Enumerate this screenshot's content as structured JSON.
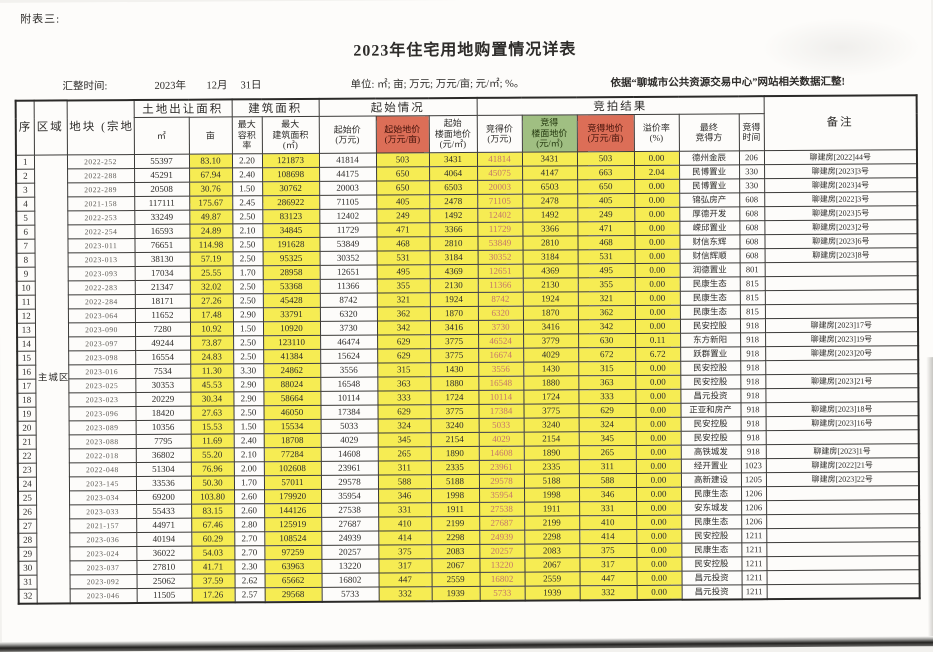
{
  "doc": {
    "corner_label": "附表三:",
    "title": "2023年住宅用地购置情况详表",
    "compile_time_label": "汇整时间:",
    "compile_year": "2023年",
    "compile_month": "12月",
    "compile_day": "31日",
    "units_note": "单位: ㎡; 亩; 万元; 万元/亩; 元/㎡; %。",
    "source_note": "依据“聊城市公共资源交易中心”网站相关数据汇整!"
  },
  "colors": {
    "highlight_yellow": "#f6ec53",
    "header_red": "#dc6e57",
    "header_green": "#a0bf82",
    "win_price_text": "#c4766b"
  },
  "table": {
    "headers": {
      "no": "序\n号",
      "region": "区域",
      "plot": "地块\n(宗地编号)",
      "land_area_group": "土地出让面积",
      "build_group": "建筑面积",
      "start_group": "起始情况",
      "auction_group": "竞拍结果",
      "remark": "备注",
      "sub": {
        "m2": "㎡",
        "mu": "亩",
        "far": "最大\n容积\n率",
        "build_area": "最大\n建筑面积\n(㎡)",
        "start_price": "起始价\n(万元)",
        "start_mu": "起始地价\n(万元/亩)",
        "start_floor": "起始\n楼面地价\n(元/㎡)",
        "win_price": "竞得价\n(万元)",
        "win_floor": "竞得\n楼面地价\n(元/㎡)",
        "win_mu": "竞得地价\n(万元/亩)",
        "premium": "溢价率\n(%)",
        "winner": "最终\n竞得方",
        "win_time": "竞得\n时间"
      }
    },
    "region_label": "主城区",
    "row_fields": [
      "plot_no",
      "area_m2",
      "area_mu",
      "max_far",
      "max_build_area_m2",
      "start_price_wy",
      "start_price_wy_per_mu",
      "start_floor_price_yuan_m2",
      "win_price_wy",
      "win_floor_price_yuan_m2",
      "win_price_wy_per_mu",
      "premium_rate_pct",
      "winner",
      "win_time",
      "remark"
    ],
    "rows": [
      [
        "2022-252",
        "55397",
        "83.10",
        "2.20",
        "121873",
        "41814",
        "503",
        "3431",
        "41814",
        "3431",
        "503",
        "0.00",
        "德州金辰",
        "206",
        "聊建房[2022]44号"
      ],
      [
        "2022-288",
        "45291",
        "67.94",
        "2.40",
        "108698",
        "44175",
        "650",
        "4064",
        "45075",
        "4147",
        "663",
        "2.04",
        "民博置业",
        "330",
        "聊建房[2023]3号"
      ],
      [
        "2022-289",
        "20508",
        "30.76",
        "1.50",
        "30762",
        "20003",
        "650",
        "6503",
        "20003",
        "6503",
        "650",
        "0.00",
        "民博置业",
        "330",
        "聊建房[2023]4号"
      ],
      [
        "2021-158",
        "117111",
        "175.67",
        "2.45",
        "286922",
        "71105",
        "405",
        "2478",
        "71105",
        "2478",
        "405",
        "0.00",
        "锦弘房产",
        "608",
        "聊建房[2022]3号"
      ],
      [
        "2022-253",
        "33249",
        "49.87",
        "2.50",
        "83123",
        "12402",
        "249",
        "1492",
        "12402",
        "1492",
        "249",
        "0.00",
        "厚德开发",
        "608",
        "聊建房[2023]5号"
      ],
      [
        "2022-254",
        "16593",
        "24.89",
        "2.10",
        "34845",
        "11729",
        "471",
        "3366",
        "11729",
        "3366",
        "471",
        "0.00",
        "嵘邱置业",
        "608",
        "聊建房[2023]2号"
      ],
      [
        "2023-011",
        "76651",
        "114.98",
        "2.50",
        "191628",
        "53849",
        "468",
        "2810",
        "53849",
        "2810",
        "468",
        "0.00",
        "财信东辉",
        "608",
        "聊建房[2023]6号"
      ],
      [
        "2023-013",
        "38130",
        "57.19",
        "2.50",
        "95325",
        "30352",
        "531",
        "3184",
        "30352",
        "3184",
        "531",
        "0.00",
        "财信辉顺",
        "608",
        "聊建房[2023]8号"
      ],
      [
        "2023-093",
        "17034",
        "25.55",
        "1.70",
        "28958",
        "12651",
        "495",
        "4369",
        "12651",
        "4369",
        "495",
        "0.00",
        "润德置业",
        "801",
        ""
      ],
      [
        "2022-283",
        "21347",
        "32.02",
        "2.50",
        "53368",
        "11366",
        "355",
        "2130",
        "11366",
        "2130",
        "355",
        "0.00",
        "民康生态",
        "815",
        ""
      ],
      [
        "2022-284",
        "18171",
        "27.26",
        "2.50",
        "45428",
        "8742",
        "321",
        "1924",
        "8742",
        "1924",
        "321",
        "0.00",
        "民康生态",
        "815",
        ""
      ],
      [
        "2023-064",
        "11652",
        "17.48",
        "2.90",
        "33791",
        "6320",
        "362",
        "1870",
        "6320",
        "1870",
        "362",
        "0.00",
        "民康生态",
        "815",
        ""
      ],
      [
        "2023-090",
        "7280",
        "10.92",
        "1.50",
        "10920",
        "3730",
        "342",
        "3416",
        "3730",
        "3416",
        "342",
        "0.00",
        "民安控股",
        "918",
        "聊建房[2023]17号"
      ],
      [
        "2023-097",
        "49244",
        "73.87",
        "2.50",
        "123110",
        "46474",
        "629",
        "3775",
        "46524",
        "3779",
        "630",
        "0.11",
        "东方新阳",
        "918",
        "聊建房[2023]19号"
      ],
      [
        "2023-098",
        "16554",
        "24.83",
        "2.50",
        "41384",
        "15624",
        "629",
        "3775",
        "16674",
        "4029",
        "672",
        "6.72",
        "跃群置业",
        "918",
        "聊建房[2023]20号"
      ],
      [
        "2023-016",
        "7534",
        "11.30",
        "3.30",
        "24862",
        "3556",
        "315",
        "1430",
        "3556",
        "1430",
        "315",
        "0.00",
        "民安控股",
        "918",
        ""
      ],
      [
        "2023-025",
        "30353",
        "45.53",
        "2.90",
        "88024",
        "16548",
        "363",
        "1880",
        "16548",
        "1880",
        "363",
        "0.00",
        "民安控股",
        "918",
        "聊建房[2023]21号"
      ],
      [
        "2023-023",
        "20229",
        "30.34",
        "2.90",
        "58664",
        "10114",
        "333",
        "1724",
        "10114",
        "1724",
        "333",
        "0.00",
        "昌元投资",
        "918",
        ""
      ],
      [
        "2023-096",
        "18420",
        "27.63",
        "2.50",
        "46050",
        "17384",
        "629",
        "3775",
        "17384",
        "3775",
        "629",
        "0.00",
        "正亚和房产",
        "918",
        "聊建房[2023]18号"
      ],
      [
        "2023-089",
        "10356",
        "15.53",
        "1.50",
        "15534",
        "5033",
        "324",
        "3240",
        "5033",
        "3240",
        "324",
        "0.00",
        "民安控股",
        "918",
        "聊建房[2023]16号"
      ],
      [
        "2023-088",
        "7795",
        "11.69",
        "2.40",
        "18708",
        "4029",
        "345",
        "2154",
        "4029",
        "2154",
        "345",
        "0.00",
        "民安控股",
        "918",
        ""
      ],
      [
        "2022-018",
        "36802",
        "55.20",
        "2.10",
        "77284",
        "14608",
        "265",
        "1890",
        "14608",
        "1890",
        "265",
        "0.00",
        "高铁城发",
        "918",
        "聊建房[2023]1号"
      ],
      [
        "2022-048",
        "51304",
        "76.96",
        "2.00",
        "102608",
        "23961",
        "311",
        "2335",
        "23961",
        "2335",
        "311",
        "0.00",
        "经开置业",
        "1023",
        "聊建房[2022]21号"
      ],
      [
        "2023-145",
        "33536",
        "50.30",
        "1.70",
        "57011",
        "29578",
        "588",
        "5188",
        "29578",
        "5188",
        "588",
        "0.00",
        "高新建设",
        "1205",
        "聊建房[2023]22号"
      ],
      [
        "2023-034",
        "69200",
        "103.80",
        "2.60",
        "179920",
        "35954",
        "346",
        "1998",
        "35954",
        "1998",
        "346",
        "0.00",
        "民康生态",
        "1206",
        ""
      ],
      [
        "2023-033",
        "55433",
        "83.15",
        "2.60",
        "144126",
        "27538",
        "331",
        "1911",
        "27538",
        "1911",
        "331",
        "0.00",
        "安东城发",
        "1206",
        ""
      ],
      [
        "2021-157",
        "44971",
        "67.46",
        "2.80",
        "125919",
        "27687",
        "410",
        "2199",
        "27687",
        "2199",
        "410",
        "0.00",
        "民康生态",
        "1206",
        ""
      ],
      [
        "2023-036",
        "40194",
        "60.29",
        "2.70",
        "108524",
        "24939",
        "414",
        "2298",
        "24939",
        "2298",
        "414",
        "0.00",
        "民安控股",
        "1211",
        ""
      ],
      [
        "2023-024",
        "36022",
        "54.03",
        "2.70",
        "97259",
        "20257",
        "375",
        "2083",
        "20257",
        "2083",
        "375",
        "0.00",
        "民康生态",
        "1211",
        ""
      ],
      [
        "2023-037",
        "27810",
        "41.71",
        "2.30",
        "63963",
        "13220",
        "317",
        "2067",
        "13220",
        "2067",
        "317",
        "0.00",
        "民安控股",
        "1211",
        ""
      ],
      [
        "2023-092",
        "25062",
        "37.59",
        "2.62",
        "65662",
        "16802",
        "447",
        "2559",
        "16802",
        "2559",
        "447",
        "0.00",
        "昌元投资",
        "1211",
        ""
      ],
      [
        "2023-046",
        "11505",
        "17.26",
        "2.57",
        "29568",
        "5733",
        "332",
        "1939",
        "5733",
        "1939",
        "332",
        "0.00",
        "昌元投资",
        "1211",
        ""
      ]
    ]
  }
}
